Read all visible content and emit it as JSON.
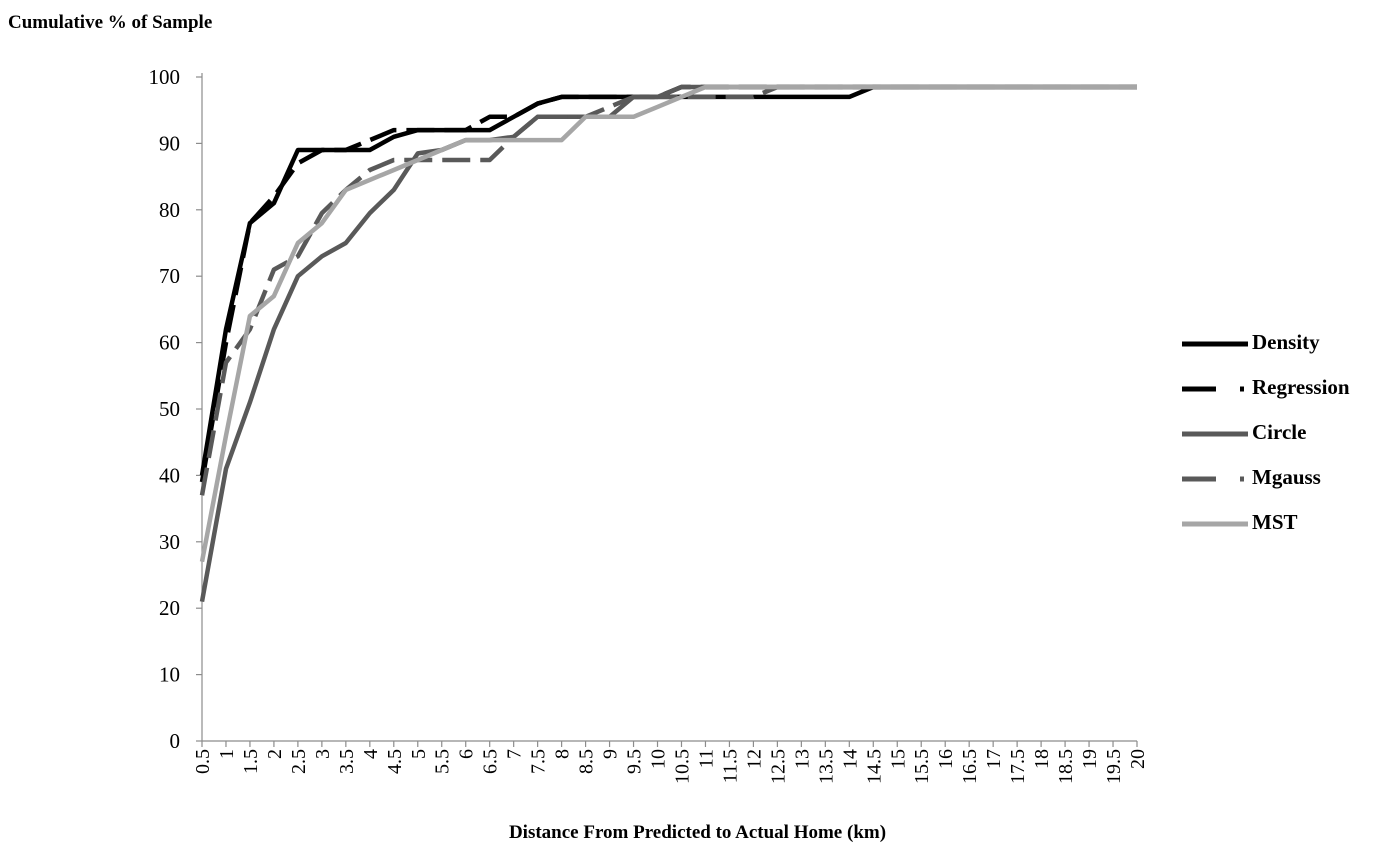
{
  "chart_data": {
    "type": "line",
    "title": "",
    "ylabel": "Cumulative % of Sample",
    "xlabel": "Distance From Predicted to Actual Home (km)",
    "ylim": [
      0,
      100
    ],
    "yticks": [
      0,
      10,
      20,
      30,
      40,
      50,
      60,
      70,
      80,
      90,
      100
    ],
    "categories": [
      "0.5",
      "1",
      "1.5",
      "2",
      "2.5",
      "3",
      "3.5",
      "4",
      "4.5",
      "5",
      "5.5",
      "6",
      "6.5",
      "7",
      "7.5",
      "8",
      "8.5",
      "9",
      "9.5",
      "10",
      "10.5",
      "11",
      "11.5",
      "12",
      "12.5",
      "13",
      "13.5",
      "14",
      "14.5",
      "15",
      "15.5",
      "16",
      "16.5",
      "17",
      "17.5",
      "18",
      "18.5",
      "19",
      "19.5",
      "20"
    ],
    "grid": false,
    "legend_position": "right",
    "series": [
      {
        "name": "Density",
        "color": "#000000",
        "dash": "solid",
        "values": [
          40,
          62,
          78,
          81,
          89,
          89,
          89,
          89,
          91,
          92,
          92,
          92,
          92,
          94,
          96,
          97,
          97,
          97,
          97,
          97,
          97,
          97,
          97,
          97,
          97,
          97,
          97,
          97,
          98.5,
          98.5,
          98.5,
          98.5,
          98.5,
          98.5,
          98.5,
          98.5,
          98.5,
          98.5,
          98.5,
          98.5
        ]
      },
      {
        "name": "Regression",
        "color": "#000000",
        "dash": "dashed",
        "values": [
          39,
          60,
          78,
          82,
          87,
          89,
          89,
          90.5,
          92,
          92,
          92,
          92,
          94,
          94,
          96,
          97,
          97,
          97,
          97,
          97,
          98.5,
          98.5,
          98.5,
          98.5,
          98.5,
          98.5,
          98.5,
          98.5,
          98.5,
          98.5,
          98.5,
          98.5,
          98.5,
          98.5,
          98.5,
          98.5,
          98.5,
          98.5,
          98.5,
          98.5
        ]
      },
      {
        "name": "Circle",
        "color": "#595959",
        "dash": "solid",
        "values": [
          21,
          41,
          51,
          62,
          70,
          73,
          75,
          79.5,
          83,
          88.5,
          89,
          90.5,
          90.5,
          91,
          94,
          94,
          94,
          94,
          97,
          97,
          98.5,
          98.5,
          98.5,
          98.5,
          98.5,
          98.5,
          98.5,
          98.5,
          98.5,
          98.5,
          98.5,
          98.5,
          98.5,
          98.5,
          98.5,
          98.5,
          98.5,
          98.5,
          98.5,
          98.5
        ]
      },
      {
        "name": "Mgauss",
        "color": "#595959",
        "dash": "dashed",
        "values": [
          37,
          57,
          62,
          71,
          73,
          79.5,
          83,
          86,
          87.5,
          87.5,
          87.5,
          87.5,
          87.5,
          91,
          94,
          94,
          94,
          95.5,
          97,
          97,
          97,
          97,
          97,
          97,
          98.5,
          98.5,
          98.5,
          98.5,
          98.5,
          98.5,
          98.5,
          98.5,
          98.5,
          98.5,
          98.5,
          98.5,
          98.5,
          98.5,
          98.5,
          98.5
        ]
      },
      {
        "name": "MST",
        "color": "#a6a6a6",
        "dash": "solid",
        "values": [
          27,
          46,
          64,
          67,
          75,
          78,
          83,
          84.5,
          86,
          87.5,
          89,
          90.5,
          90.5,
          90.5,
          90.5,
          90.5,
          94,
          94,
          94,
          95.5,
          97,
          98.5,
          98.5,
          98.5,
          98.5,
          98.5,
          98.5,
          98.5,
          98.5,
          98.5,
          98.5,
          98.5,
          98.5,
          98.5,
          98.5,
          98.5,
          98.5,
          98.5,
          98.5,
          98.5
        ]
      }
    ]
  }
}
